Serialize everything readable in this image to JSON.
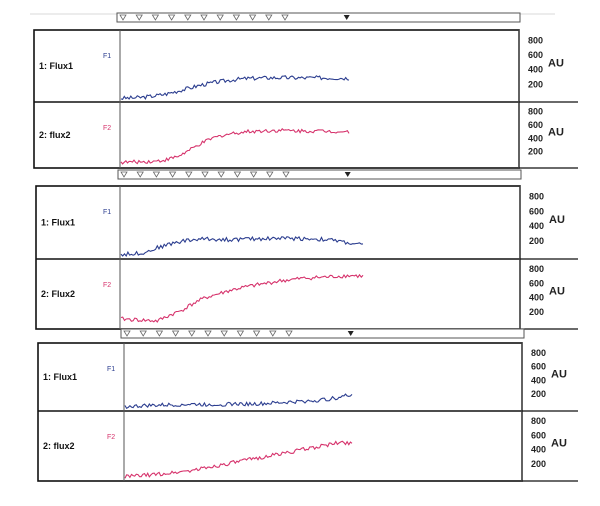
{
  "chart_data": [
    {
      "type": "line",
      "y_unit": "AU",
      "y_ticks": [
        200,
        400,
        600,
        800
      ],
      "ylim": [
        0,
        900
      ],
      "x_marker_count": 11,
      "channels": [
        {
          "label": "1: Flux1",
          "tag": "F1",
          "color": "#2b3d8f",
          "x": [
            0,
            0.05,
            0.1,
            0.15,
            0.2,
            0.25,
            0.3,
            0.35,
            0.4,
            0.45,
            0.5,
            0.55,
            0.6,
            0.65,
            0.7,
            0.75,
            0.8,
            0.85,
            0.9,
            0.95,
            1.0
          ],
          "values": [
            10,
            15,
            25,
            45,
            70,
            110,
            150,
            190,
            220,
            245,
            265,
            280,
            285,
            290,
            292,
            290,
            288,
            290,
            289,
            287,
            285
          ]
        },
        {
          "label": "2: flux2",
          "tag": "F2",
          "color": "#d6336c",
          "x": [
            0,
            0.05,
            0.1,
            0.15,
            0.2,
            0.25,
            0.3,
            0.35,
            0.4,
            0.45,
            0.5,
            0.55,
            0.6,
            0.65,
            0.7,
            0.75,
            0.8,
            0.85,
            0.9,
            0.95,
            1.0
          ],
          "values": [
            40,
            45,
            50,
            55,
            80,
            130,
            220,
            320,
            400,
            450,
            480,
            500,
            510,
            515,
            520,
            515,
            510,
            512,
            508,
            505,
            500
          ]
        }
      ]
    },
    {
      "type": "line",
      "y_unit": "AU",
      "y_ticks": [
        200,
        400,
        600,
        800
      ],
      "ylim": [
        0,
        900
      ],
      "x_marker_count": 11,
      "channels": [
        {
          "label": "1: Flux1",
          "tag": "F1",
          "color": "#2b3d8f",
          "x": [
            0,
            0.05,
            0.1,
            0.15,
            0.2,
            0.25,
            0.3,
            0.35,
            0.4,
            0.45,
            0.5,
            0.55,
            0.6,
            0.65,
            0.7,
            0.75,
            0.8,
            0.85,
            0.9,
            0.95,
            1.0
          ],
          "values": [
            20,
            30,
            50,
            110,
            160,
            200,
            220,
            230,
            225,
            220,
            225,
            230,
            235,
            240,
            238,
            235,
            230,
            220,
            200,
            170,
            150
          ]
        },
        {
          "label": "2: Flux2",
          "tag": "F2",
          "color": "#d6336c",
          "x": [
            0,
            0.05,
            0.1,
            0.15,
            0.2,
            0.25,
            0.3,
            0.35,
            0.4,
            0.45,
            0.5,
            0.55,
            0.6,
            0.65,
            0.7,
            0.75,
            0.8,
            0.85,
            0.9,
            0.95,
            1.0
          ],
          "values": [
            100,
            90,
            80,
            70,
            150,
            220,
            320,
            400,
            450,
            500,
            540,
            570,
            600,
            630,
            650,
            670,
            680,
            690,
            700,
            710,
            700
          ]
        }
      ]
    },
    {
      "type": "line",
      "y_unit": "AU",
      "y_ticks": [
        200,
        400,
        600,
        800
      ],
      "ylim": [
        0,
        900
      ],
      "x_marker_count": 11,
      "channels": [
        {
          "label": "1: Flux1",
          "tag": "F1",
          "color": "#2b3d8f",
          "x": [
            0,
            0.05,
            0.1,
            0.15,
            0.2,
            0.25,
            0.3,
            0.35,
            0.4,
            0.45,
            0.5,
            0.55,
            0.6,
            0.65,
            0.7,
            0.75,
            0.8,
            0.85,
            0.9,
            0.95,
            1.0
          ],
          "values": [
            20,
            25,
            35,
            40,
            45,
            50,
            55,
            50,
            52,
            55,
            60,
            58,
            62,
            70,
            80,
            90,
            100,
            110,
            130,
            160,
            200
          ]
        },
        {
          "label": "2: flux2",
          "tag": "F2",
          "color": "#d6336c",
          "x": [
            0,
            0.05,
            0.1,
            0.15,
            0.2,
            0.25,
            0.3,
            0.35,
            0.4,
            0.45,
            0.5,
            0.55,
            0.6,
            0.65,
            0.7,
            0.75,
            0.8,
            0.85,
            0.9,
            0.95,
            1.0
          ],
          "values": [
            20,
            30,
            40,
            55,
            70,
            90,
            110,
            140,
            170,
            200,
            230,
            260,
            290,
            320,
            350,
            380,
            410,
            440,
            470,
            500,
            490
          ]
        }
      ]
    }
  ]
}
